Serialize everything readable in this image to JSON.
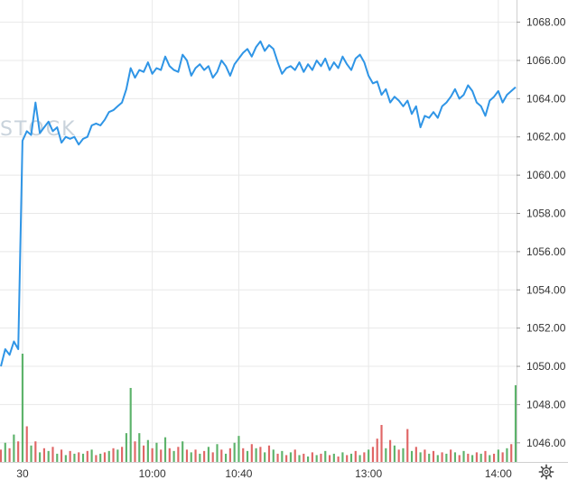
{
  "watermark_text": "STOCK",
  "colors": {
    "line": "#2f95e6",
    "volume_up": "#5db36b",
    "volume_down": "#e06666",
    "grid": "#e8e8e8",
    "axis_text": "#333333",
    "background": "#ffffff"
  },
  "icons": {
    "settings": "gear-icon"
  },
  "chart_data": {
    "type": "line",
    "grid": true,
    "y_axis_position": "right",
    "ylim": [
      1045.0,
      1068.5
    ],
    "yticks": [
      1046.0,
      1048.0,
      1050.0,
      1052.0,
      1054.0,
      1056.0,
      1058.0,
      1060.0,
      1062.0,
      1064.0,
      1066.0,
      1068.0
    ],
    "ytick_labels": [
      "1046.00",
      "1048.00",
      "1050.00",
      "1052.00",
      "1054.00",
      "1056.00",
      "1058.00",
      "1060.00",
      "1062.00",
      "1064.00",
      "1066.00",
      "1068.00"
    ],
    "xtick_labels": [
      {
        "label": "30",
        "index": 5
      },
      {
        "label": "10:00",
        "index": 35
      },
      {
        "label": "10:40",
        "index": 55
      },
      {
        "label": "13:00",
        "index": 85
      },
      {
        "label": "14:00",
        "index": 115
      }
    ],
    "series": [
      {
        "values": [
          1050.0,
          1050.9,
          1050.6,
          1051.3,
          1050.9,
          1061.8,
          1062.3,
          1062.1,
          1063.8,
          1062.2,
          1062.5,
          1062.8,
          1062.3,
          1062.5,
          1061.7,
          1062.0,
          1061.9,
          1062.0,
          1061.6,
          1061.9,
          1062.0,
          1062.6,
          1062.7,
          1062.6,
          1062.9,
          1063.3,
          1063.4,
          1063.6,
          1063.8,
          1064.5,
          1065.6,
          1065.1,
          1065.5,
          1065.4,
          1065.9,
          1065.3,
          1065.6,
          1065.5,
          1066.2,
          1065.7,
          1065.5,
          1065.4,
          1066.3,
          1066.0,
          1065.2,
          1065.6,
          1065.8,
          1065.5,
          1065.7,
          1065.1,
          1065.4,
          1066.0,
          1065.7,
          1065.2,
          1065.8,
          1066.1,
          1066.4,
          1066.6,
          1066.2,
          1066.7,
          1067.0,
          1066.5,
          1066.8,
          1066.6,
          1065.9,
          1065.3,
          1065.6,
          1065.7,
          1065.5,
          1065.9,
          1065.4,
          1065.8,
          1065.5,
          1066.0,
          1065.7,
          1066.1,
          1065.5,
          1065.9,
          1065.6,
          1066.2,
          1065.8,
          1065.5,
          1066.1,
          1066.3,
          1065.9,
          1065.2,
          1064.8,
          1064.9,
          1064.2,
          1064.5,
          1063.8,
          1064.1,
          1063.9,
          1063.6,
          1063.9,
          1063.2,
          1063.6,
          1062.5,
          1063.1,
          1063.0,
          1063.3,
          1063.0,
          1063.6,
          1063.8,
          1064.1,
          1064.5,
          1064.0,
          1064.2,
          1064.7,
          1064.4,
          1063.8,
          1063.6,
          1063.1,
          1063.9,
          1064.1,
          1064.4,
          1063.8,
          1064.2,
          1064.4,
          1064.6
        ]
      }
    ],
    "volume": [
      {
        "v": 0.9,
        "up": false
      },
      {
        "v": 1.4,
        "up": true
      },
      {
        "v": 1.0,
        "up": false
      },
      {
        "v": 2.0,
        "up": true
      },
      {
        "v": 1.5,
        "up": false
      },
      {
        "v": 7.9,
        "up": true
      },
      {
        "v": 2.6,
        "up": false
      },
      {
        "v": 1.2,
        "up": true
      },
      {
        "v": 1.5,
        "up": false
      },
      {
        "v": 0.7,
        "up": true
      },
      {
        "v": 1.0,
        "up": false
      },
      {
        "v": 0.8,
        "up": true
      },
      {
        "v": 1.1,
        "up": false
      },
      {
        "v": 0.6,
        "up": true
      },
      {
        "v": 0.9,
        "up": false
      },
      {
        "v": 0.5,
        "up": true
      },
      {
        "v": 0.8,
        "up": false
      },
      {
        "v": 0.6,
        "up": true
      },
      {
        "v": 0.7,
        "up": false
      },
      {
        "v": 0.6,
        "up": true
      },
      {
        "v": 0.8,
        "up": false
      },
      {
        "v": 0.9,
        "up": true
      },
      {
        "v": 0.5,
        "up": false
      },
      {
        "v": 0.6,
        "up": true
      },
      {
        "v": 0.7,
        "up": false
      },
      {
        "v": 0.8,
        "up": true
      },
      {
        "v": 1.0,
        "up": false
      },
      {
        "v": 0.9,
        "up": true
      },
      {
        "v": 1.1,
        "up": false
      },
      {
        "v": 2.1,
        "up": true
      },
      {
        "v": 5.4,
        "up": true
      },
      {
        "v": 1.5,
        "up": false
      },
      {
        "v": 2.1,
        "up": true
      },
      {
        "v": 1.2,
        "up": false
      },
      {
        "v": 1.6,
        "up": true
      },
      {
        "v": 1.0,
        "up": false
      },
      {
        "v": 1.4,
        "up": true
      },
      {
        "v": 0.9,
        "up": false
      },
      {
        "v": 1.8,
        "up": true
      },
      {
        "v": 1.0,
        "up": false
      },
      {
        "v": 0.8,
        "up": true
      },
      {
        "v": 1.1,
        "up": false
      },
      {
        "v": 1.5,
        "up": true
      },
      {
        "v": 0.9,
        "up": false
      },
      {
        "v": 0.7,
        "up": true
      },
      {
        "v": 0.9,
        "up": false
      },
      {
        "v": 0.6,
        "up": true
      },
      {
        "v": 0.8,
        "up": false
      },
      {
        "v": 1.1,
        "up": true
      },
      {
        "v": 0.7,
        "up": false
      },
      {
        "v": 1.3,
        "up": true
      },
      {
        "v": 0.9,
        "up": false
      },
      {
        "v": 0.6,
        "up": true
      },
      {
        "v": 1.0,
        "up": false
      },
      {
        "v": 1.4,
        "up": true
      },
      {
        "v": 1.9,
        "up": true
      },
      {
        "v": 1.0,
        "up": false
      },
      {
        "v": 0.8,
        "up": true
      },
      {
        "v": 1.3,
        "up": false
      },
      {
        "v": 1.0,
        "up": true
      },
      {
        "v": 1.1,
        "up": false
      },
      {
        "v": 0.7,
        "up": true
      },
      {
        "v": 1.2,
        "up": false
      },
      {
        "v": 0.9,
        "up": true
      },
      {
        "v": 0.6,
        "up": false
      },
      {
        "v": 0.8,
        "up": true
      },
      {
        "v": 0.5,
        "up": false
      },
      {
        "v": 0.7,
        "up": true
      },
      {
        "v": 0.9,
        "up": false
      },
      {
        "v": 0.5,
        "up": true
      },
      {
        "v": 0.6,
        "up": false
      },
      {
        "v": 0.4,
        "up": true
      },
      {
        "v": 0.7,
        "up": false
      },
      {
        "v": 0.5,
        "up": true
      },
      {
        "v": 0.6,
        "up": false
      },
      {
        "v": 0.8,
        "up": true
      },
      {
        "v": 0.5,
        "up": false
      },
      {
        "v": 0.6,
        "up": true
      },
      {
        "v": 0.4,
        "up": false
      },
      {
        "v": 0.7,
        "up": true
      },
      {
        "v": 0.5,
        "up": false
      },
      {
        "v": 0.6,
        "up": true
      },
      {
        "v": 0.8,
        "up": false
      },
      {
        "v": 0.5,
        "up": true
      },
      {
        "v": 0.7,
        "up": false
      },
      {
        "v": 0.9,
        "up": true
      },
      {
        "v": 1.1,
        "up": false
      },
      {
        "v": 1.7,
        "up": false
      },
      {
        "v": 2.7,
        "up": false
      },
      {
        "v": 1.0,
        "up": true
      },
      {
        "v": 1.6,
        "up": false
      },
      {
        "v": 1.2,
        "up": true
      },
      {
        "v": 0.9,
        "up": false
      },
      {
        "v": 1.0,
        "up": true
      },
      {
        "v": 2.4,
        "up": false
      },
      {
        "v": 0.8,
        "up": true
      },
      {
        "v": 1.1,
        "up": false
      },
      {
        "v": 0.7,
        "up": true
      },
      {
        "v": 0.9,
        "up": false
      },
      {
        "v": 0.6,
        "up": true
      },
      {
        "v": 0.8,
        "up": false
      },
      {
        "v": 0.5,
        "up": true
      },
      {
        "v": 0.7,
        "up": false
      },
      {
        "v": 0.6,
        "up": true
      },
      {
        "v": 0.9,
        "up": false
      },
      {
        "v": 0.7,
        "up": true
      },
      {
        "v": 0.5,
        "up": false
      },
      {
        "v": 0.8,
        "up": true
      },
      {
        "v": 0.6,
        "up": false
      },
      {
        "v": 0.5,
        "up": true
      },
      {
        "v": 0.7,
        "up": false
      },
      {
        "v": 0.6,
        "up": true
      },
      {
        "v": 0.8,
        "up": false
      },
      {
        "v": 0.5,
        "up": true
      },
      {
        "v": 0.6,
        "up": false
      },
      {
        "v": 0.9,
        "up": true
      },
      {
        "v": 0.7,
        "up": false
      },
      {
        "v": 1.0,
        "up": true
      },
      {
        "v": 1.3,
        "up": false
      },
      {
        "v": 5.6,
        "up": true
      }
    ]
  }
}
